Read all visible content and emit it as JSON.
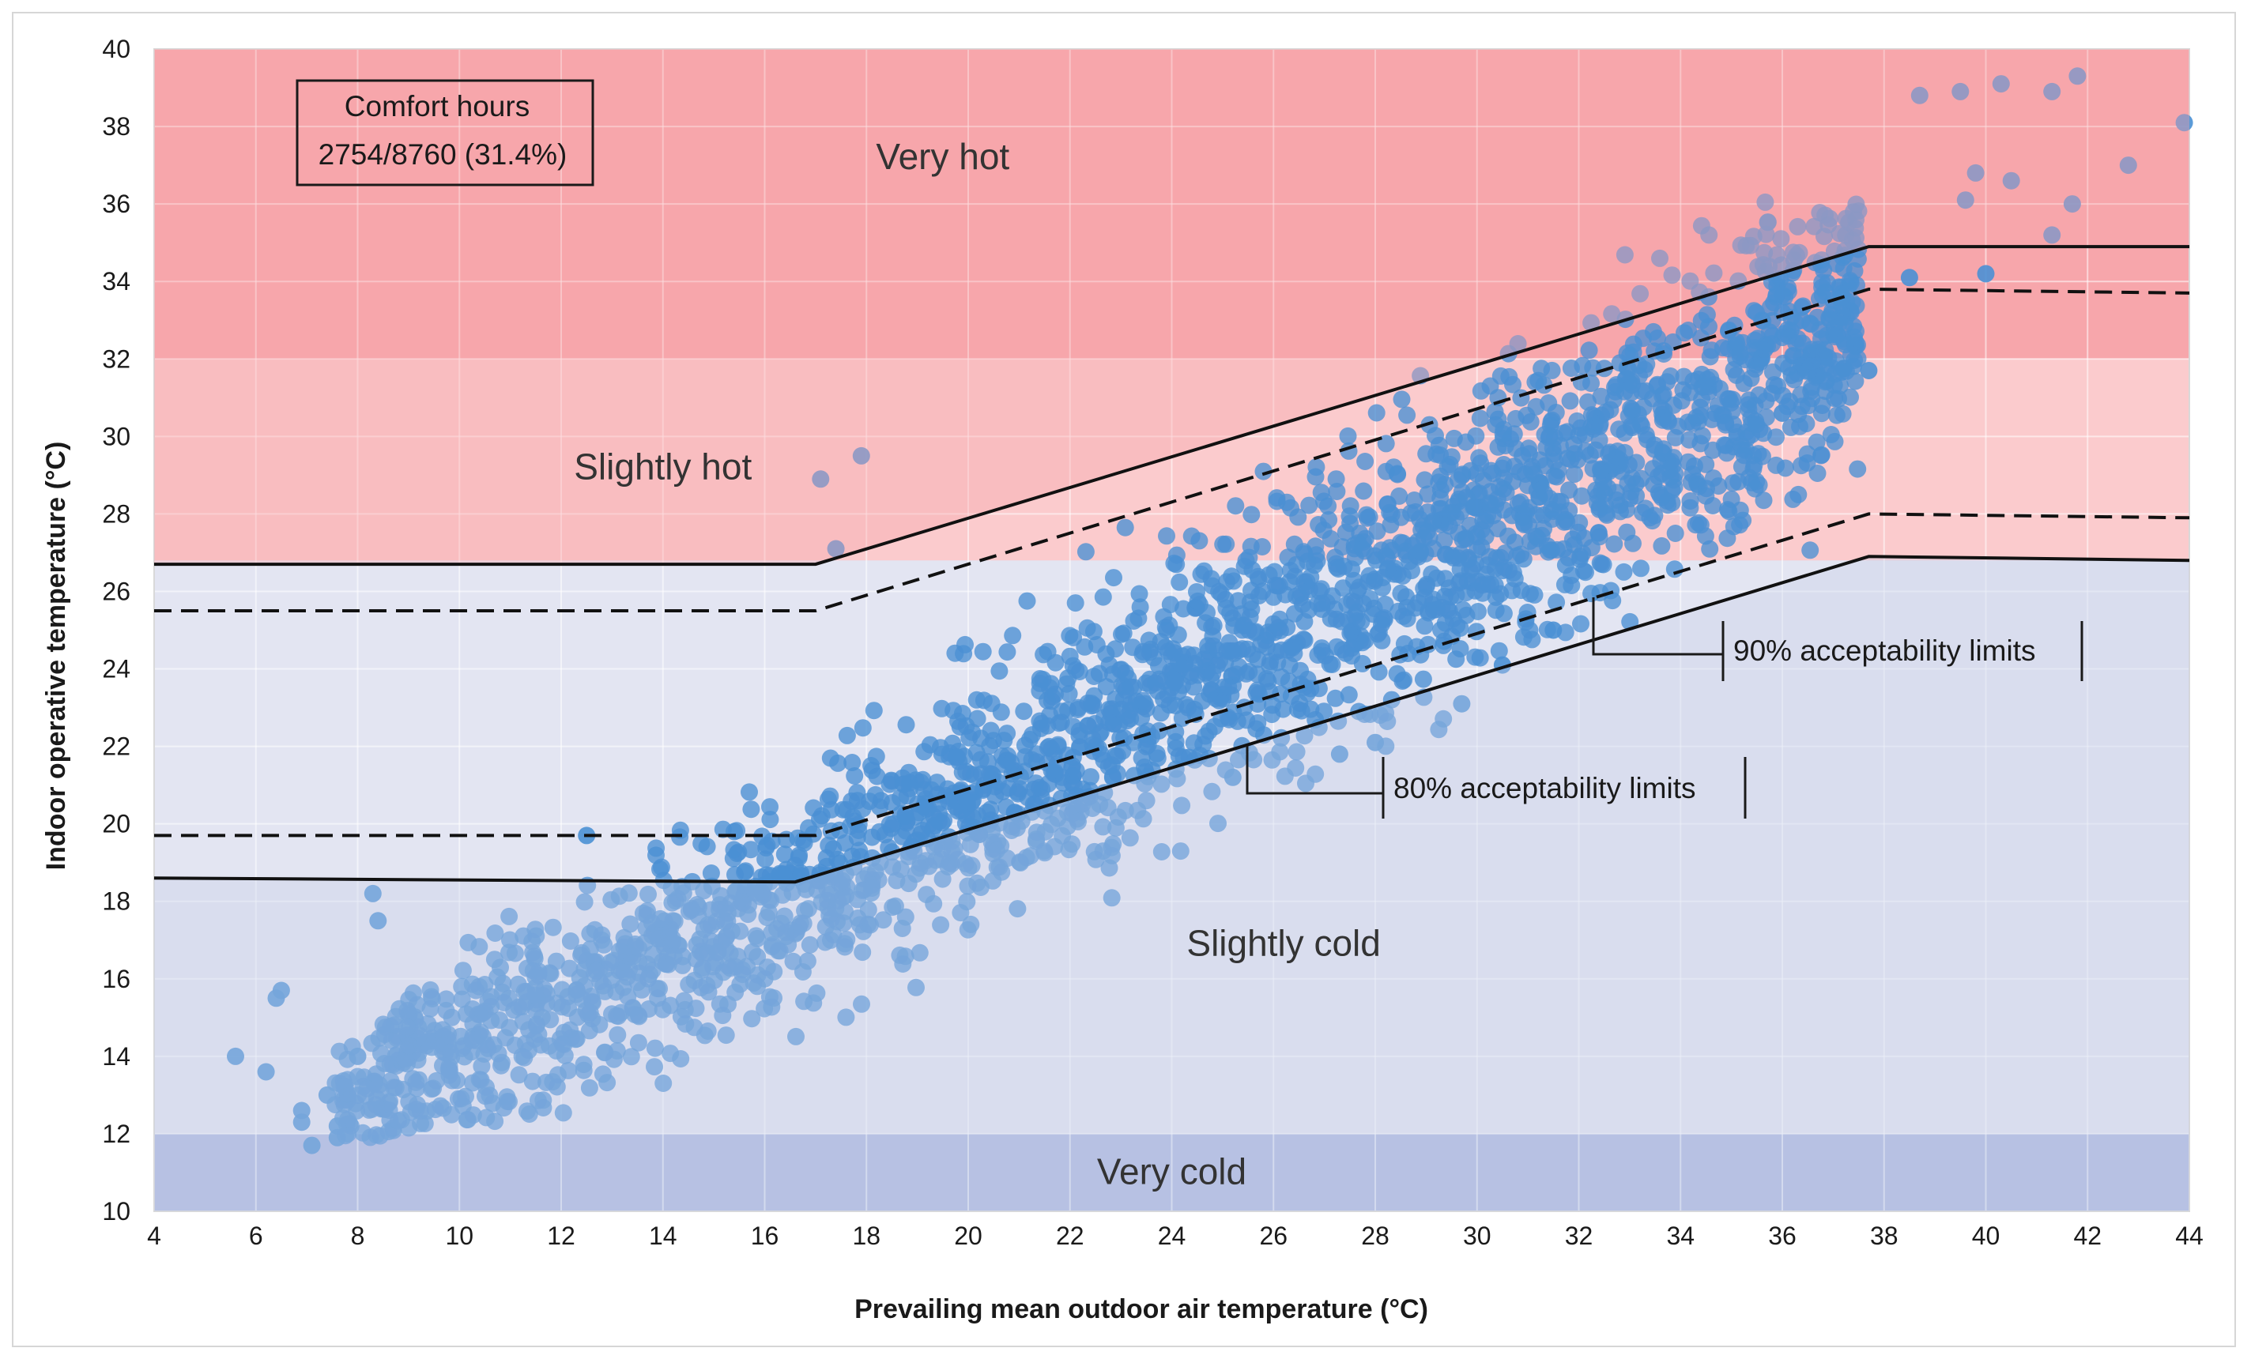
{
  "chart_data": {
    "type": "scatter",
    "xlabel": "Prevailing mean outdoor air temperature (°C)",
    "ylabel": "Indoor operative temperature (°C)",
    "xlim": [
      4,
      44
    ],
    "ylim": [
      10,
      40
    ],
    "x_ticks": [
      "4",
      "6",
      "8",
      "10",
      "12",
      "14",
      "16",
      "18",
      "20",
      "22",
      "24",
      "26",
      "28",
      "30",
      "32",
      "34",
      "36",
      "38",
      "40",
      "42",
      "44"
    ],
    "y_ticks": [
      "10",
      "12",
      "14",
      "16",
      "18",
      "20",
      "22",
      "24",
      "26",
      "28",
      "30",
      "32",
      "34",
      "36",
      "38",
      "40"
    ],
    "grid": true,
    "zones": [
      {
        "label": "Very hot",
        "y_from": 32,
        "y_to": 40,
        "color": "#f7a6ab",
        "label_x": 19.5,
        "label_y": 36.9
      },
      {
        "label": "Slightly hot",
        "y_from": 26.7,
        "y_to": 32,
        "color": "#fbcbcd",
        "label_x": 14.0,
        "label_y": 28.9
      },
      {
        "label": "Slightly cold",
        "y_from": 12,
        "y_to": 26.8,
        "color": "#e3e5f2",
        "label_x": 26.2,
        "label_y": 16.6
      },
      {
        "label": "Very cold",
        "y_from": 10,
        "y_to": 12,
        "color": "#b0bbe1",
        "label_x": 24.0,
        "label_y": 10.7
      }
    ],
    "upper_80_limit": {
      "x": [
        4,
        17,
        37.7,
        44
      ],
      "y": [
        26.7,
        26.7,
        34.9,
        34.9
      ]
    },
    "upper_90_limit": {
      "x": [
        4,
        17,
        37.7,
        44
      ],
      "y": [
        25.5,
        25.5,
        33.8,
        33.7
      ]
    },
    "lower_90_limit": {
      "x": [
        4,
        17,
        37.7,
        44
      ],
      "y": [
        19.7,
        19.7,
        28.0,
        27.9
      ]
    },
    "lower_80_limit": {
      "x": [
        4,
        16.6,
        37.7,
        44
      ],
      "y": [
        18.6,
        18.5,
        26.9,
        26.8
      ]
    },
    "annotations": {
      "comfort_title": "Comfort hours",
      "comfort_value": "2754/8760 (31.4%)",
      "limit_90": "90% acceptability limits",
      "limit_80": "80% acceptability limits"
    },
    "series": [
      {
        "color": "#4a90d4",
        "points_count": 8760,
        "points_sample": [
          [
            5.6,
            14.0
          ],
          [
            6.2,
            13.6
          ],
          [
            6.4,
            15.5
          ],
          [
            6.5,
            15.7
          ],
          [
            6.9,
            12.6
          ],
          [
            6.9,
            12.3
          ],
          [
            7.1,
            11.7
          ],
          [
            7.4,
            13.0
          ],
          [
            7.6,
            11.9
          ],
          [
            7.6,
            12.2
          ],
          [
            8.0,
            14.0
          ],
          [
            8.3,
            18.2
          ],
          [
            8.4,
            17.5
          ],
          [
            12.5,
            19.7
          ],
          [
            17.1,
            28.9
          ],
          [
            17.4,
            27.1
          ],
          [
            17.9,
            29.5
          ],
          [
            25.2,
            21.2
          ],
          [
            27.3,
            21.8
          ],
          [
            28.0,
            22.1
          ],
          [
            29.7,
            23.1
          ],
          [
            30.5,
            24.1
          ],
          [
            31.5,
            25.0
          ],
          [
            36.0,
            30.6
          ],
          [
            37.7,
            31.7
          ],
          [
            38.5,
            34.1
          ],
          [
            40.0,
            34.2
          ],
          [
            38.7,
            38.8
          ],
          [
            39.5,
            38.9
          ],
          [
            40.3,
            39.1
          ],
          [
            41.3,
            38.9
          ],
          [
            41.8,
            39.3
          ],
          [
            42.8,
            37.0
          ],
          [
            43.9,
            38.1
          ],
          [
            41.7,
            36.0
          ],
          [
            41.3,
            35.2
          ],
          [
            40.5,
            36.6
          ],
          [
            39.8,
            36.8
          ],
          [
            39.6,
            36.1
          ]
        ]
      }
    ]
  }
}
